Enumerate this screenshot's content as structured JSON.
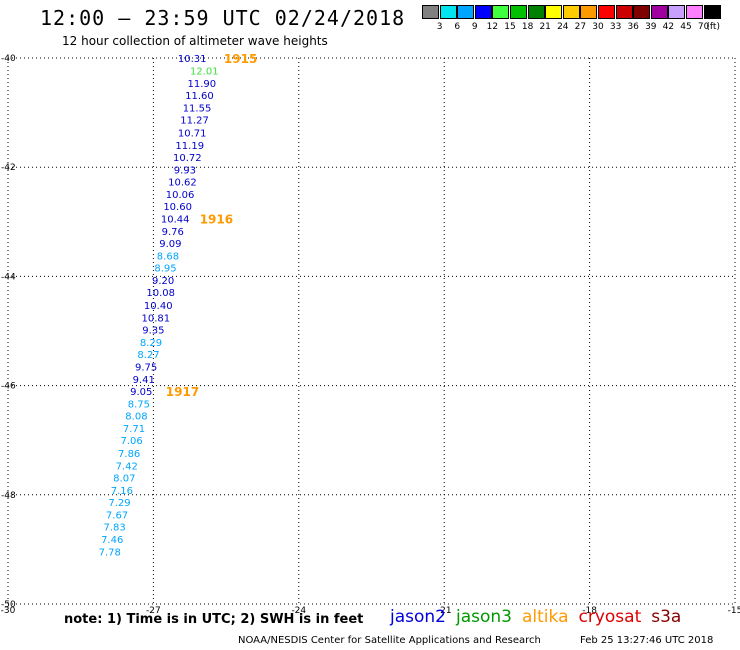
{
  "header": {
    "title": "12:00 — 23:59 UTC 02/24/2018",
    "subtitle": "12 hour collection of altimeter wave heights"
  },
  "colorbar": {
    "unit": "(ft)",
    "bins": [
      {
        "label": "3",
        "color": "#808080"
      },
      {
        "label": "6",
        "color": "#00e5ee"
      },
      {
        "label": "9",
        "color": "#00a5ff"
      },
      {
        "label": "12",
        "color": "#0000ff"
      },
      {
        "label": "15",
        "color": "#40ff40"
      },
      {
        "label": "18",
        "color": "#00c000"
      },
      {
        "label": "21",
        "color": "#008000"
      },
      {
        "label": "24",
        "color": "#ffff00"
      },
      {
        "label": "27",
        "color": "#ffcc00"
      },
      {
        "label": "30",
        "color": "#ff9900"
      },
      {
        "label": "33",
        "color": "#ff0000"
      },
      {
        "label": "36",
        "color": "#cc0000"
      },
      {
        "label": "39",
        "color": "#800000"
      },
      {
        "label": "42",
        "color": "#a000a0"
      },
      {
        "label": "45",
        "color": "#c8a0ff"
      },
      {
        "label": "70",
        "color": "#ff80ff"
      },
      {
        "label": "",
        "color": "#000000"
      }
    ]
  },
  "chart_data": {
    "type": "scatter",
    "xlim": [
      -30,
      -15
    ],
    "ylim": [
      -50,
      -40
    ],
    "x_ticks": [
      "-30",
      "-27",
      "-24",
      "-21",
      "-18",
      "-15"
    ],
    "y_ticks": [
      "-40",
      "-42",
      "-44",
      "-46",
      "-48",
      "-50"
    ],
    "points": [
      {
        "lon": -26.2,
        "lat": -40.0,
        "v": "10.31",
        "c": "#0000cc"
      },
      {
        "lon": -25.95,
        "lat": -40.23,
        "v": "12.01",
        "c": "#40e040"
      },
      {
        "lon": -26.0,
        "lat": -40.46,
        "v": "11.90",
        "c": "#0000cc"
      },
      {
        "lon": -26.05,
        "lat": -40.68,
        "v": "11.60",
        "c": "#0000cc"
      },
      {
        "lon": -26.1,
        "lat": -40.91,
        "v": "11.55",
        "c": "#0000cc"
      },
      {
        "lon": -26.15,
        "lat": -41.13,
        "v": "11.27",
        "c": "#0000cc"
      },
      {
        "lon": -26.2,
        "lat": -41.36,
        "v": "10.71",
        "c": "#0000cc"
      },
      {
        "lon": -26.25,
        "lat": -41.59,
        "v": "11.19",
        "c": "#0000cc"
      },
      {
        "lon": -26.3,
        "lat": -41.81,
        "v": "10.72",
        "c": "#0000cc"
      },
      {
        "lon": -26.35,
        "lat": -42.04,
        "v": "9.93",
        "c": "#0000cc"
      },
      {
        "lon": -26.4,
        "lat": -42.26,
        "v": "10.62",
        "c": "#0000cc"
      },
      {
        "lon": -26.45,
        "lat": -42.49,
        "v": "10.06",
        "c": "#0000cc"
      },
      {
        "lon": -26.5,
        "lat": -42.71,
        "v": "10.60",
        "c": "#0000cc"
      },
      {
        "lon": -26.55,
        "lat": -42.94,
        "v": "10.44",
        "c": "#0000cc"
      },
      {
        "lon": -26.6,
        "lat": -43.17,
        "v": "9.76",
        "c": "#0000cc"
      },
      {
        "lon": -26.65,
        "lat": -43.39,
        "v": "9.09",
        "c": "#0000cc"
      },
      {
        "lon": -26.7,
        "lat": -43.62,
        "v": "8.68",
        "c": "#00a5ff"
      },
      {
        "lon": -26.75,
        "lat": -43.84,
        "v": "8.95",
        "c": "#00a5ff"
      },
      {
        "lon": -26.8,
        "lat": -44.07,
        "v": "9.20",
        "c": "#0000cc"
      },
      {
        "lon": -26.85,
        "lat": -44.29,
        "v": "10.08",
        "c": "#0000cc"
      },
      {
        "lon": -26.9,
        "lat": -44.52,
        "v": "10.40",
        "c": "#0000cc"
      },
      {
        "lon": -26.95,
        "lat": -44.75,
        "v": "10.81",
        "c": "#0000cc"
      },
      {
        "lon": -27.0,
        "lat": -44.97,
        "v": "9.35",
        "c": "#0000cc"
      },
      {
        "lon": -27.05,
        "lat": -45.2,
        "v": "8.29",
        "c": "#00a5ff"
      },
      {
        "lon": -27.1,
        "lat": -45.42,
        "v": "8.27",
        "c": "#00a5ff"
      },
      {
        "lon": -27.15,
        "lat": -45.65,
        "v": "9.75",
        "c": "#0000cc"
      },
      {
        "lon": -27.2,
        "lat": -45.88,
        "v": "9.41",
        "c": "#0000cc"
      },
      {
        "lon": -27.25,
        "lat": -46.1,
        "v": "9.05",
        "c": "#0000cc"
      },
      {
        "lon": -27.3,
        "lat": -46.33,
        "v": "8.75",
        "c": "#00a5ff"
      },
      {
        "lon": -27.35,
        "lat": -46.55,
        "v": "8.08",
        "c": "#00a5ff"
      },
      {
        "lon": -27.4,
        "lat": -46.78,
        "v": "7.71",
        "c": "#00a5ff"
      },
      {
        "lon": -27.45,
        "lat": -47.0,
        "v": "7.06",
        "c": "#00a5ff"
      },
      {
        "lon": -27.5,
        "lat": -47.23,
        "v": "7.86",
        "c": "#00a5ff"
      },
      {
        "lon": -27.55,
        "lat": -47.46,
        "v": "7.42",
        "c": "#00a5ff"
      },
      {
        "lon": -27.6,
        "lat": -47.68,
        "v": "8.07",
        "c": "#00a5ff"
      },
      {
        "lon": -27.65,
        "lat": -47.91,
        "v": "7.16",
        "c": "#00a5ff"
      },
      {
        "lon": -27.7,
        "lat": -48.13,
        "v": "7.29",
        "c": "#00a5ff"
      },
      {
        "lon": -27.75,
        "lat": -48.36,
        "v": "7.67",
        "c": "#00a5ff"
      },
      {
        "lon": -27.8,
        "lat": -48.58,
        "v": "7.83",
        "c": "#00a5ff"
      },
      {
        "lon": -27.85,
        "lat": -48.81,
        "v": "7.46",
        "c": "#00a5ff"
      },
      {
        "lon": -27.9,
        "lat": -49.04,
        "v": "7.78",
        "c": "#00a5ff"
      }
    ],
    "times": [
      {
        "lon": -25.2,
        "lat": -40.0,
        "label": "1915"
      },
      {
        "lon": -25.7,
        "lat": -42.94,
        "label": "1916"
      },
      {
        "lon": -26.4,
        "lat": -46.1,
        "label": "1917"
      }
    ]
  },
  "footer": {
    "note": "note:  1) Time is in UTC;  2) SWH is in feet",
    "satellites": [
      {
        "name": "jason2",
        "color": "#0000dd"
      },
      {
        "name": "jason3",
        "color": "#009900"
      },
      {
        "name": "altika",
        "color": "#ff9900"
      },
      {
        "name": "cryosat",
        "color": "#dd0000"
      },
      {
        "name": "s3a",
        "color": "#880000"
      }
    ],
    "credit": "NOAA/NESDIS Center for Satellite Applications and Research",
    "timestamp": "Feb 25 13:27:46 UTC 2018"
  }
}
